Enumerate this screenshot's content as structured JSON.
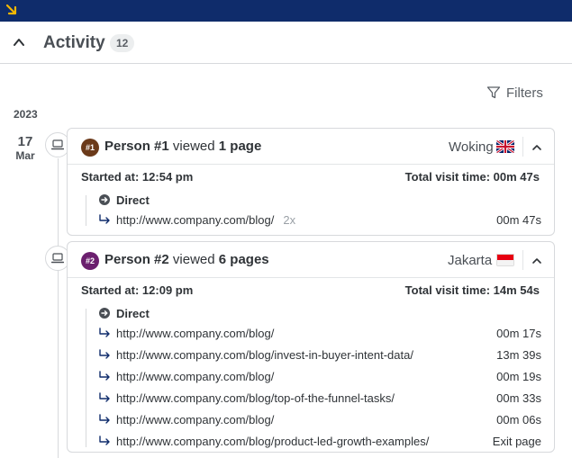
{
  "header": {
    "title": "Activity",
    "count": "12"
  },
  "filters_label": "Filters",
  "timeline": {
    "year": "2023",
    "day": "17",
    "month": "Mar"
  },
  "visits": [
    {
      "badge": "#1",
      "badge_color": "#6b3a1a",
      "person": "Person #1",
      "verb": "viewed",
      "pages_count": "1 page",
      "city": "Woking",
      "started_label": "Started at:",
      "started_time": "12:54 pm",
      "total_label": "Total visit time:",
      "total_time": "00m 47s",
      "source": "Direct",
      "rows": [
        {
          "url": "http://www.company.com/blog/",
          "times": "2x",
          "duration": "00m 47s"
        }
      ]
    },
    {
      "badge": "#2",
      "badge_color": "#6b1f6e",
      "person": "Person #2",
      "verb": "viewed",
      "pages_count": "6 pages",
      "city": "Jakarta",
      "started_label": "Started at:",
      "started_time": "12:09 pm",
      "total_label": "Total visit time:",
      "total_time": "14m 54s",
      "source": "Direct",
      "rows": [
        {
          "url": "http://www.company.com/blog/",
          "duration": "00m 17s"
        },
        {
          "url": "http://www.company.com/blog/invest-in-buyer-intent-data/",
          "duration": "13m 39s"
        },
        {
          "url": "http://www.company.com/blog/",
          "duration": "00m 19s"
        },
        {
          "url": "http://www.company.com/blog/top-of-the-funnel-tasks/",
          "duration": "00m 33s"
        },
        {
          "url": "http://www.company.com/blog/",
          "duration": "00m 06s"
        },
        {
          "url": "http://www.company.com/blog/product-led-growth-examples/",
          "duration": "Exit page"
        }
      ]
    }
  ]
}
